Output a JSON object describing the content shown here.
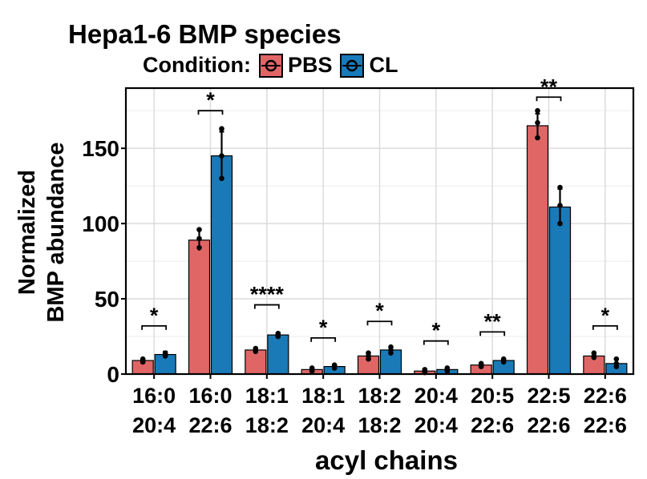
{
  "chart_data": {
    "type": "bar",
    "title": "Hepa1-6 BMP species",
    "xlabel": "acyl chains",
    "ylabel": [
      "Normalized",
      "BMP abundance"
    ],
    "legend": {
      "title": "Condition:",
      "position": "top"
    },
    "ylim": [
      0,
      190
    ],
    "yticks": [
      0,
      50,
      100,
      150
    ],
    "grid": true,
    "categories": [
      [
        "16:0",
        "20:4"
      ],
      [
        "16:0",
        "22:6"
      ],
      [
        "18:1",
        "18:2"
      ],
      [
        "18:1",
        "20:4"
      ],
      [
        "18:2",
        "18:2"
      ],
      [
        "20:4",
        "20:4"
      ],
      [
        "20:5",
        "22:6"
      ],
      [
        "22:5",
        "22:6"
      ],
      [
        "22:6",
        "22:6"
      ]
    ],
    "series": [
      {
        "name": "PBS",
        "color": "#e06666",
        "values": [
          9,
          89,
          16,
          3,
          12,
          2,
          6,
          165,
          12
        ],
        "errors": [
          1,
          7,
          1,
          1,
          2,
          1,
          1,
          8,
          2
        ],
        "points": [
          [
            8,
            9,
            10
          ],
          [
            84,
            90,
            96
          ],
          [
            15,
            16,
            17
          ],
          [
            2,
            3,
            4
          ],
          [
            10,
            12,
            14
          ],
          [
            1,
            2,
            3
          ],
          [
            5,
            6,
            7
          ],
          [
            157,
            167,
            175
          ],
          [
            11,
            12,
            14
          ]
        ]
      },
      {
        "name": "CL",
        "color": "#1a7ab8",
        "values": [
          13,
          145,
          26,
          5,
          16,
          3,
          9,
          111,
          7
        ],
        "errors": [
          2,
          16,
          1,
          1,
          2,
          1,
          1,
          12,
          3
        ],
        "points": [
          [
            12,
            13,
            14
          ],
          [
            130,
            145,
            163
          ],
          [
            25,
            26,
            27
          ],
          [
            4,
            5,
            6
          ],
          [
            14,
            16,
            18
          ],
          [
            2,
            3,
            4
          ],
          [
            8,
            9,
            10
          ],
          [
            100,
            112,
            124
          ],
          [
            5,
            7,
            10
          ]
        ]
      }
    ],
    "significance": [
      "*",
      "*",
      "****",
      "*",
      "*",
      "*",
      "**",
      "**",
      "*"
    ],
    "significance_heights": [
      32,
      175,
      46,
      24,
      35,
      22,
      28,
      184,
      32
    ]
  }
}
